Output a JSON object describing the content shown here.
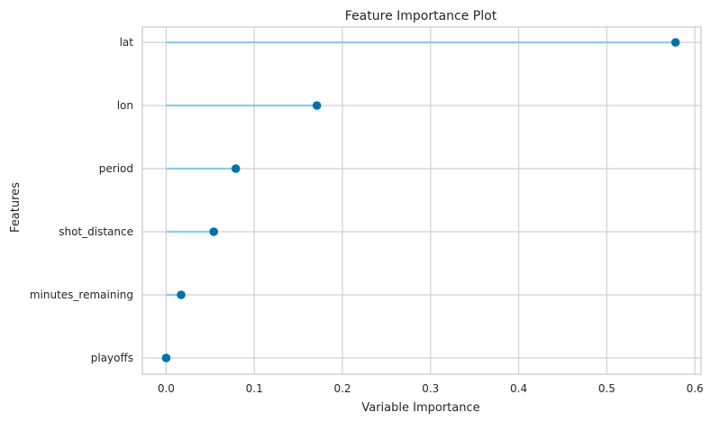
{
  "chart_data": {
    "type": "lollipop",
    "title": "Feature Importance Plot",
    "xlabel": "Variable Importance",
    "ylabel": "Features",
    "categories": [
      "lat",
      "lon",
      "period",
      "shot_distance",
      "minutes_remaining",
      "playoffs"
    ],
    "values": [
      0.578,
      0.171,
      0.079,
      0.054,
      0.017,
      0.0
    ],
    "xlim": [
      -0.027,
      0.607
    ],
    "xticks": [
      0.0,
      0.1,
      0.2,
      0.3,
      0.4,
      0.5,
      0.6
    ],
    "xtick_labels": [
      "0.0",
      "0.1",
      "0.2",
      "0.3",
      "0.4",
      "0.5",
      "0.6"
    ],
    "grid": true,
    "colors": {
      "stem": "#87ceeb",
      "marker": "#0072a8",
      "grid": "#d0d0d0",
      "frame": "#c8c8c8"
    }
  }
}
